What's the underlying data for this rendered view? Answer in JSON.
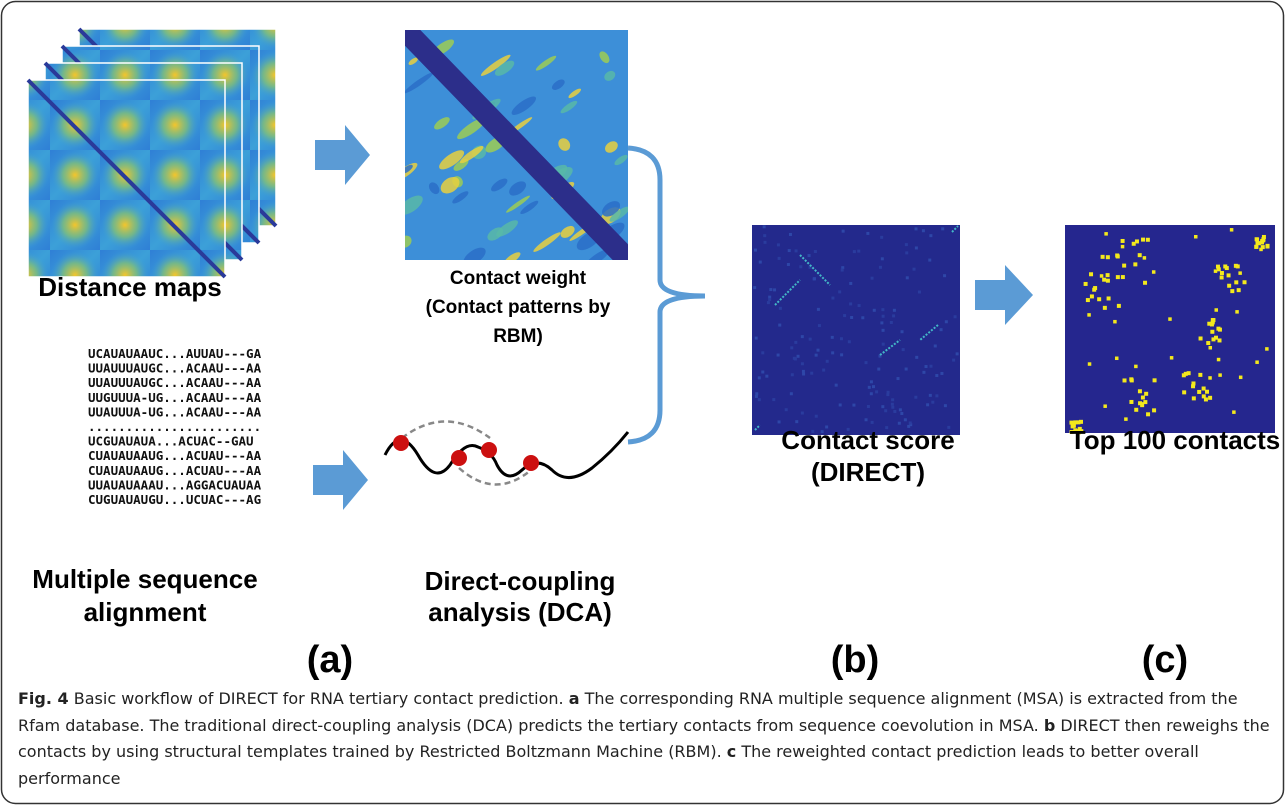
{
  "figure": {
    "panels": {
      "distance_maps": {
        "label": "Distance maps"
      },
      "contact_weight": {
        "label_lines": [
          "Contact weight",
          "(Contact patterns by",
          "RBM)"
        ]
      },
      "msa": {
        "sequences": [
          "UCAUAUAAUC...AUUAU---GA",
          "UUAUUUAUGC...ACAAU---AA",
          "UUAUUUAUGC...ACAAU---AA",
          "UUGUUUA-UG...ACAAU---AA",
          "UUAUUUA-UG...ACAAU---AA",
          ".......................",
          "UCGUAUAUA...ACUAC--GAU",
          "CUAUAUAAUG...ACUAU---AA",
          "CUAUAUAAUG...ACUAU---AA",
          "UUAUAUAAAU...AGGACUAUAA",
          "CUGUAUAUGU...UCUAC---AG"
        ],
        "label_lines": [
          "Multiple sequence",
          "alignment"
        ]
      },
      "dca": {
        "label_lines": [
          "Direct-coupling",
          "analysis (DCA)"
        ]
      },
      "contact_score": {
        "label_lines": [
          "Contact score",
          "(DIRECT)"
        ]
      },
      "top_contacts": {
        "label": "Top 100 contacts"
      }
    },
    "panel_letters": [
      "(a)",
      "(b)",
      "(c)"
    ],
    "caption": {
      "label": "Fig. 4",
      "intro": "Basic workflow of DIRECT for RNA tertiary contact prediction.",
      "parts": [
        {
          "letter": "a",
          "text": "The corresponding RNA multiple sequence alignment (MSA) is extracted from the Rfam database. The traditional direct-coupling analysis (DCA) predicts the tertiary contacts from sequence coevolution in MSA."
        },
        {
          "letter": "b",
          "text": "DIRECT then reweighs the contacts by using structural templates trained by Restricted Boltzmann Machine (RBM)."
        },
        {
          "letter": "c",
          "text": "The reweighted contact prediction leads to better overall performance"
        }
      ]
    }
  }
}
